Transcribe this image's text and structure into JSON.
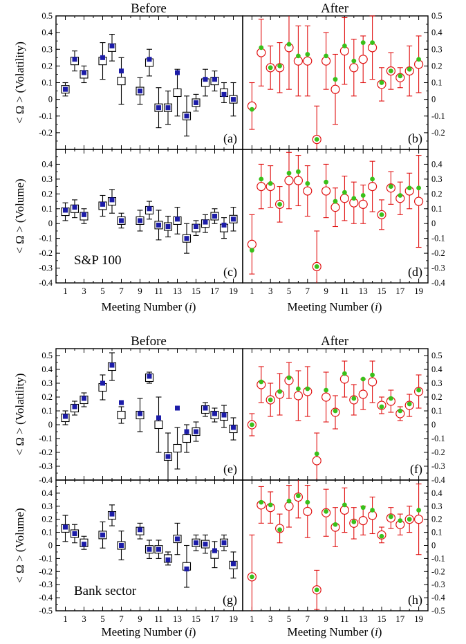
{
  "colors": {
    "before_errorbar": "#000000",
    "before_marker": "#1c1ca8",
    "after_errorbar": "#e01010",
    "after_marker": "#39c01a",
    "frame": "#000000"
  },
  "figure": {
    "sections": [
      {
        "header_before": "Before",
        "header_after": "After",
        "group_label": "S&P 100",
        "xlabel_left": "Meeting Number (i)",
        "xlabel_right": "Meeting Number (i)"
      },
      {
        "header_before": "Before",
        "header_after": "After",
        "group_label": "Bank sector",
        "xlabel_left": "Meeting Number (i)",
        "xlabel_right": "Meeting Number (i)"
      }
    ],
    "xticks": [
      "1",
      "3",
      "5",
      "7",
      "9",
      "11",
      "13",
      "15",
      "17",
      "19"
    ],
    "xlim": [
      0,
      20
    ]
  },
  "chart_data": [
    {
      "type": "scatter",
      "panel": "(a)",
      "period": "Before",
      "group": "S&P 100",
      "measure": "Volatility",
      "ylabel": "< Ω > (Volatility)",
      "ylim": [
        -0.3,
        0.5
      ],
      "yticks": [
        -0.2,
        -0.1,
        0,
        0.1,
        0.2,
        0.3,
        0.4,
        0.5
      ],
      "x": [
        1,
        2,
        3,
        5,
        6,
        7,
        9,
        10,
        11,
        12,
        13,
        14,
        15,
        16,
        17,
        18,
        19
      ],
      "series": [
        {
          "name": "",
          "marker": "open-square",
          "values": [
            0.06,
            0.23,
            0.15,
            0.23,
            0.31,
            0.11,
            0.05,
            0.22,
            -0.05,
            -0.05,
            0.04,
            -0.1,
            -0.02,
            0.1,
            0.11,
            0.04,
            0.0
          ],
          "err": [
            0.04,
            0.06,
            0.05,
            0.11,
            0.08,
            0.14,
            0.08,
            0.08,
            0.12,
            0.1,
            0.14,
            0.12,
            0.05,
            0.08,
            0.06,
            0.06,
            0.1
          ]
        },
        {
          "name": "",
          "marker": "filled-square",
          "values": [
            0.06,
            0.24,
            0.16,
            0.25,
            0.32,
            0.17,
            0.05,
            0.24,
            -0.05,
            -0.05,
            0.16,
            -0.1,
            -0.02,
            0.12,
            0.12,
            0.03,
            0.0
          ]
        }
      ]
    },
    {
      "type": "scatter",
      "panel": "(b)",
      "period": "After",
      "group": "S&P 100",
      "measure": "Volatility",
      "ylabel": "",
      "ylim": [
        -0.3,
        0.5
      ],
      "yticks": [
        -0.2,
        -0.1,
        0,
        0.1,
        0.2,
        0.3,
        0.4,
        0.5
      ],
      "x": [
        1,
        2,
        3,
        4,
        5,
        6,
        7,
        8,
        9,
        10,
        11,
        12,
        13,
        14,
        15,
        16,
        17,
        18,
        19
      ],
      "series": [
        {
          "name": "",
          "marker": "open-circle",
          "values": [
            -0.04,
            0.28,
            0.19,
            0.19,
            0.31,
            0.23,
            0.23,
            -0.24,
            0.23,
            0.06,
            0.29,
            0.19,
            0.24,
            0.31,
            0.09,
            0.17,
            0.13,
            0.17,
            0.21
          ],
          "err": [
            0.14,
            0.2,
            0.13,
            0.15,
            0.25,
            0.21,
            0.21,
            0.2,
            0.17,
            0.21,
            0.2,
            0.17,
            0.14,
            0.19,
            0.1,
            0.11,
            0.06,
            0.15,
            0.17
          ]
        },
        {
          "name": "",
          "marker": "filled-circle",
          "values": [
            -0.06,
            0.31,
            0.19,
            0.2,
            0.33,
            0.26,
            0.27,
            -0.24,
            0.26,
            0.12,
            0.32,
            0.23,
            0.34,
            0.34,
            0.1,
            0.17,
            0.14,
            0.18,
            0.24
          ]
        }
      ]
    },
    {
      "type": "scatter",
      "panel": "(c)",
      "period": "Before",
      "group": "S&P 100",
      "measure": "Volume",
      "ylabel": "< Ω > (Volume)",
      "ylim": [
        -0.4,
        0.5
      ],
      "yticks": [
        -0.4,
        -0.3,
        -0.2,
        -0.1,
        0,
        0.1,
        0.2,
        0.3,
        0.4
      ],
      "x": [
        1,
        2,
        3,
        5,
        6,
        7,
        9,
        10,
        11,
        12,
        13,
        14,
        15,
        16,
        17,
        18,
        19
      ],
      "series": [
        {
          "name": "",
          "marker": "open-square",
          "values": [
            0.08,
            0.1,
            0.05,
            0.12,
            0.15,
            0.02,
            0.02,
            0.09,
            -0.01,
            -0.02,
            0.02,
            -0.1,
            -0.03,
            0.0,
            0.05,
            -0.03,
            0.03
          ],
          "err": [
            0.06,
            0.06,
            0.05,
            0.07,
            0.08,
            0.05,
            0.07,
            0.06,
            0.1,
            0.07,
            0.09,
            0.1,
            0.05,
            0.06,
            0.05,
            0.07,
            0.08
          ]
        },
        {
          "name": "",
          "marker": "filled-square",
          "values": [
            0.09,
            0.11,
            0.06,
            0.13,
            0.16,
            0.02,
            0.02,
            0.1,
            -0.01,
            -0.02,
            0.03,
            -0.1,
            -0.02,
            0.01,
            0.05,
            -0.01,
            0.03
          ]
        }
      ]
    },
    {
      "type": "scatter",
      "panel": "(d)",
      "period": "After",
      "group": "S&P 100",
      "measure": "Volume",
      "ylabel": "",
      "ylim": [
        -0.4,
        0.5
      ],
      "yticks": [
        -0.4,
        -0.3,
        -0.2,
        -0.1,
        0,
        0.1,
        0.2,
        0.3,
        0.4
      ],
      "x": [
        1,
        2,
        3,
        4,
        5,
        6,
        7,
        8,
        9,
        10,
        11,
        12,
        13,
        14,
        15,
        16,
        17,
        18,
        19
      ],
      "series": [
        {
          "name": "",
          "marker": "open-circle",
          "values": [
            -0.14,
            0.25,
            0.25,
            0.13,
            0.29,
            0.29,
            0.22,
            -0.29,
            0.22,
            0.11,
            0.17,
            0.14,
            0.13,
            0.25,
            0.06,
            0.24,
            0.17,
            0.22,
            0.15
          ],
          "err": [
            0.2,
            0.15,
            0.14,
            0.12,
            0.19,
            0.17,
            0.17,
            0.24,
            0.18,
            0.13,
            0.15,
            0.14,
            0.13,
            0.17,
            0.1,
            0.11,
            0.11,
            0.12,
            0.31
          ]
        },
        {
          "name": "",
          "marker": "filled-circle",
          "values": [
            -0.18,
            0.3,
            0.27,
            0.13,
            0.34,
            0.35,
            0.27,
            -0.29,
            0.28,
            0.15,
            0.21,
            0.17,
            0.19,
            0.3,
            0.06,
            0.25,
            0.19,
            0.24,
            0.24
          ]
        }
      ]
    },
    {
      "type": "scatter",
      "panel": "(e)",
      "period": "Before",
      "group": "Bank sector",
      "measure": "Volatility",
      "ylabel": "< Ω > (Volatility)",
      "ylim": [
        -0.4,
        0.55
      ],
      "yticks": [
        -0.4,
        -0.3,
        -0.2,
        -0.1,
        0,
        0.1,
        0.2,
        0.3,
        0.4,
        0.5
      ],
      "x": [
        1,
        2,
        3,
        5,
        6,
        7,
        9,
        10,
        11,
        12,
        13,
        14,
        15,
        16,
        17,
        18,
        19
      ],
      "series": [
        {
          "name": "",
          "marker": "open-square",
          "values": [
            0.05,
            0.12,
            0.18,
            0.27,
            0.42,
            0.07,
            0.07,
            0.34,
            0.0,
            -0.23,
            -0.17,
            -0.1,
            -0.05,
            0.11,
            0.07,
            0.06,
            -0.03
          ],
          "err": [
            0.05,
            0.05,
            0.05,
            0.09,
            0.1,
            0.06,
            0.12,
            0.04,
            0.2,
            0.17,
            0.15,
            0.1,
            0.07,
            0.05,
            0.05,
            0.08,
            0.08
          ]
        },
        {
          "name": "",
          "marker": "filled-square",
          "values": [
            0.06,
            0.13,
            0.19,
            0.3,
            0.43,
            0.16,
            0.08,
            0.35,
            0.05,
            -0.23,
            0.12,
            -0.05,
            -0.05,
            0.12,
            0.08,
            0.07,
            -0.02
          ]
        }
      ]
    },
    {
      "type": "scatter",
      "panel": "(f)",
      "period": "After",
      "group": "Bank sector",
      "measure": "Volatility",
      "ylabel": "",
      "ylim": [
        -0.4,
        0.55
      ],
      "yticks": [
        -0.4,
        -0.3,
        -0.2,
        -0.1,
        0,
        0.1,
        0.2,
        0.3,
        0.4,
        0.5
      ],
      "x": [
        1,
        2,
        3,
        4,
        5,
        6,
        7,
        8,
        9,
        10,
        11,
        12,
        13,
        14,
        15,
        16,
        17,
        18,
        19
      ],
      "series": [
        {
          "name": "",
          "marker": "open-circle",
          "values": [
            0.0,
            0.29,
            0.18,
            0.22,
            0.32,
            0.21,
            0.24,
            -0.26,
            0.2,
            0.09,
            0.33,
            0.18,
            0.22,
            0.31,
            0.14,
            0.17,
            0.08,
            0.14,
            0.24
          ],
          "err": [
            0.08,
            0.13,
            0.12,
            0.15,
            0.13,
            0.18,
            0.18,
            0.2,
            0.18,
            0.12,
            0.13,
            0.11,
            0.11,
            0.15,
            0.06,
            0.08,
            0.05,
            0.08,
            0.12
          ]
        },
        {
          "name": "",
          "marker": "filled-circle",
          "values": [
            0.0,
            0.31,
            0.18,
            0.24,
            0.34,
            0.26,
            0.26,
            -0.21,
            0.25,
            0.1,
            0.37,
            0.19,
            0.33,
            0.36,
            0.13,
            0.19,
            0.1,
            0.15,
            0.25
          ]
        }
      ]
    },
    {
      "type": "scatter",
      "panel": "(g)",
      "period": "Before",
      "group": "Bank sector",
      "measure": "Volume",
      "ylabel": "< Ω > (Volume)",
      "ylim": [
        -0.5,
        0.5
      ],
      "yticks": [
        -0.5,
        -0.4,
        -0.3,
        -0.2,
        -0.1,
        0,
        0.1,
        0.2,
        0.3,
        0.4
      ],
      "x": [
        1,
        2,
        3,
        5,
        6,
        7,
        9,
        10,
        11,
        12,
        13,
        14,
        15,
        16,
        17,
        18,
        19
      ],
      "series": [
        {
          "name": "",
          "marker": "open-square",
          "values": [
            0.13,
            0.09,
            0.02,
            0.08,
            0.23,
            0.0,
            0.11,
            -0.03,
            -0.03,
            -0.1,
            0.05,
            -0.16,
            0.02,
            0.01,
            -0.07,
            0.02,
            -0.15
          ],
          "err": [
            0.1,
            0.07,
            0.05,
            0.1,
            0.08,
            0.11,
            0.06,
            0.07,
            0.07,
            0.05,
            0.12,
            0.16,
            0.06,
            0.07,
            0.1,
            0.06,
            0.1
          ]
        },
        {
          "name": "",
          "marker": "filled-square",
          "values": [
            0.14,
            0.09,
            0.01,
            0.08,
            0.24,
            0.0,
            0.12,
            -0.03,
            -0.03,
            -0.11,
            0.05,
            -0.18,
            0.02,
            0.01,
            -0.04,
            0.02,
            -0.14
          ]
        }
      ]
    },
    {
      "type": "scatter",
      "panel": "(h)",
      "period": "After",
      "group": "Bank sector",
      "measure": "Volume",
      "ylabel": "",
      "ylim": [
        -0.5,
        0.5
      ],
      "yticks": [
        -0.5,
        -0.4,
        -0.3,
        -0.2,
        -0.1,
        0,
        0.1,
        0.2,
        0.3,
        0.4
      ],
      "x": [
        1,
        2,
        3,
        4,
        5,
        6,
        7,
        8,
        9,
        10,
        11,
        12,
        13,
        14,
        15,
        16,
        17,
        18,
        19
      ],
      "series": [
        {
          "name": "",
          "marker": "open-circle",
          "values": [
            -0.24,
            0.31,
            0.29,
            0.13,
            0.3,
            0.37,
            0.26,
            -0.34,
            0.25,
            0.14,
            0.27,
            0.17,
            0.19,
            0.23,
            0.08,
            0.21,
            0.16,
            0.2,
            0.2
          ],
          "err": [
            0.32,
            0.14,
            0.12,
            0.11,
            0.16,
            0.16,
            0.2,
            0.15,
            0.18,
            0.15,
            0.17,
            0.12,
            0.11,
            0.14,
            0.06,
            0.08,
            0.08,
            0.1,
            0.27
          ]
        },
        {
          "name": "",
          "marker": "filled-circle",
          "values": [
            -0.24,
            0.33,
            0.31,
            0.12,
            0.34,
            0.38,
            0.33,
            -0.34,
            0.26,
            0.16,
            0.31,
            0.18,
            0.29,
            0.27,
            0.07,
            0.22,
            0.19,
            0.2,
            0.27
          ]
        }
      ]
    }
  ]
}
